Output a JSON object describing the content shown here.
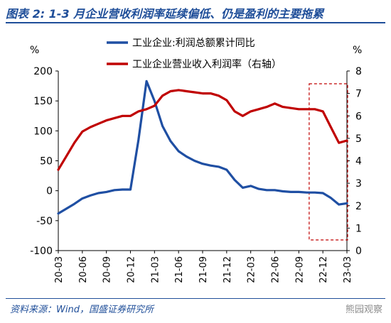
{
  "header": {
    "title": "图表 2:  1-3 月企业营收利润率延续偏低、仍是盈利的主要拖累"
  },
  "footer": {
    "source": "资料来源：Wind，国盛证券研究所",
    "watermark": "熊园观察"
  },
  "colors": {
    "series_profit": "#1f4fa3",
    "series_margin": "#c00000",
    "highlight_box": "#c00000",
    "title": "#1f4e99"
  },
  "chart_data": {
    "type": "line",
    "y_left_unit": "%",
    "y_right_unit": "%",
    "ylim_left": [
      -100,
      200
    ],
    "ylim_right": [
      0,
      8
    ],
    "yticks_left": [
      -100,
      -50,
      0,
      50,
      100,
      150,
      200
    ],
    "yticks_right": [
      0,
      1,
      2,
      3,
      4,
      5,
      6,
      7,
      8
    ],
    "x_tick_labels": [
      "20-03",
      "20-06",
      "20-09",
      "20-12",
      "21-03",
      "21-06",
      "21-09",
      "21-12",
      "22-03",
      "22-06",
      "22-09",
      "22-12",
      "23-03"
    ],
    "legend_placement": "top-center",
    "highlight": {
      "from": "22-11",
      "to": "23-03"
    },
    "series": [
      {
        "name": "工业企业:利润总额累计同比",
        "axis": "left",
        "color": "#1f4fa3",
        "points": [
          [
            "20-03",
            -38
          ],
          [
            "20-04",
            -30
          ],
          [
            "20-05",
            -22
          ],
          [
            "20-06",
            -13
          ],
          [
            "20-07",
            -8
          ],
          [
            "20-08",
            -4
          ],
          [
            "20-09",
            -2
          ],
          [
            "20-10",
            1
          ],
          [
            "20-11",
            2
          ],
          [
            "20-12",
            2
          ],
          [
            "21-01",
            85
          ],
          [
            "21-02",
            183
          ],
          [
            "21-03",
            150
          ],
          [
            "21-04",
            108
          ],
          [
            "21-05",
            83
          ],
          [
            "21-06",
            66
          ],
          [
            "21-07",
            57
          ],
          [
            "21-08",
            50
          ],
          [
            "21-09",
            45
          ],
          [
            "21-10",
            42
          ],
          [
            "21-11",
            40
          ],
          [
            "21-12",
            35
          ],
          [
            "22-01",
            18
          ],
          [
            "22-02",
            5
          ],
          [
            "22-03",
            8
          ],
          [
            "22-04",
            3
          ],
          [
            "22-05",
            1
          ],
          [
            "22-06",
            1
          ],
          [
            "22-07",
            -1
          ],
          [
            "22-08",
            -2
          ],
          [
            "22-09",
            -2
          ],
          [
            "22-10",
            -3
          ],
          [
            "22-11",
            -3
          ],
          [
            "22-12",
            -4
          ],
          [
            "23-01",
            -12
          ],
          [
            "23-02",
            -23
          ],
          [
            "23-03",
            -21
          ]
        ]
      },
      {
        "name": "工业企业营业收入利润率（右轴）",
        "axis": "right",
        "color": "#c00000",
        "points": [
          [
            "20-03",
            3.6
          ],
          [
            "20-04",
            4.2
          ],
          [
            "20-05",
            4.8
          ],
          [
            "20-06",
            5.3
          ],
          [
            "20-07",
            5.5
          ],
          [
            "20-08",
            5.65
          ],
          [
            "20-09",
            5.8
          ],
          [
            "20-10",
            5.9
          ],
          [
            "20-11",
            6.0
          ],
          [
            "20-12",
            6.0
          ],
          [
            "21-01",
            6.2
          ],
          [
            "21-02",
            6.3
          ],
          [
            "21-03",
            6.45
          ],
          [
            "21-04",
            6.9
          ],
          [
            "21-05",
            7.1
          ],
          [
            "21-06",
            7.15
          ],
          [
            "21-07",
            7.1
          ],
          [
            "21-08",
            7.05
          ],
          [
            "21-09",
            7.0
          ],
          [
            "21-10",
            7.0
          ],
          [
            "21-11",
            6.9
          ],
          [
            "21-12",
            6.7
          ],
          [
            "22-01",
            6.2
          ],
          [
            "22-02",
            6.0
          ],
          [
            "22-03",
            6.2
          ],
          [
            "22-04",
            6.3
          ],
          [
            "22-05",
            6.4
          ],
          [
            "22-06",
            6.55
          ],
          [
            "22-07",
            6.4
          ],
          [
            "22-08",
            6.35
          ],
          [
            "22-09",
            6.3
          ],
          [
            "22-10",
            6.3
          ],
          [
            "22-11",
            6.3
          ],
          [
            "22-12",
            6.2
          ],
          [
            "23-01",
            5.5
          ],
          [
            "23-02",
            4.8
          ],
          [
            "23-03",
            4.9
          ]
        ]
      }
    ]
  }
}
